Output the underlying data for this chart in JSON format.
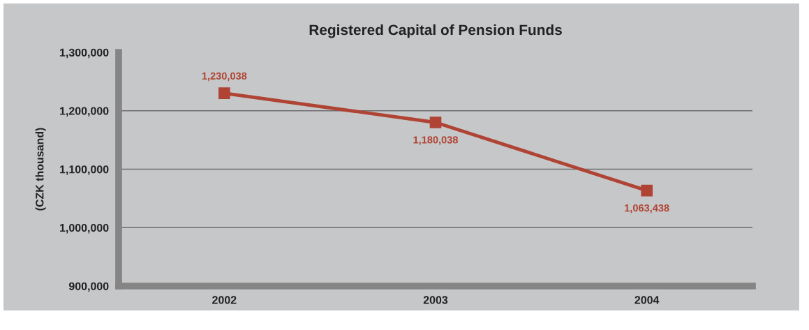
{
  "chart_data": {
    "type": "line",
    "title": "Registered Capital of Pension Funds",
    "ylabel": "(CZK thousand)",
    "categories": [
      "2002",
      "2003",
      "2004"
    ],
    "series": [
      {
        "color": "#b04434",
        "values": [
          1230038,
          1180038,
          1063438
        ],
        "value_labels": [
          "1,230,038",
          "1,180,038",
          "1,063,438"
        ]
      }
    ],
    "ylim": [
      900000,
      1300000
    ],
    "yticks": [
      {
        "value": 900000,
        "label": "900,000"
      },
      {
        "value": 1000000,
        "label": "1,000,000"
      },
      {
        "value": 1100000,
        "label": "1,100,000"
      },
      {
        "value": 1200000,
        "label": "1,200,000"
      },
      {
        "value": 1300000,
        "label": "1,300,000"
      }
    ],
    "grid": "y",
    "marker": "square",
    "line_style": "solid"
  }
}
